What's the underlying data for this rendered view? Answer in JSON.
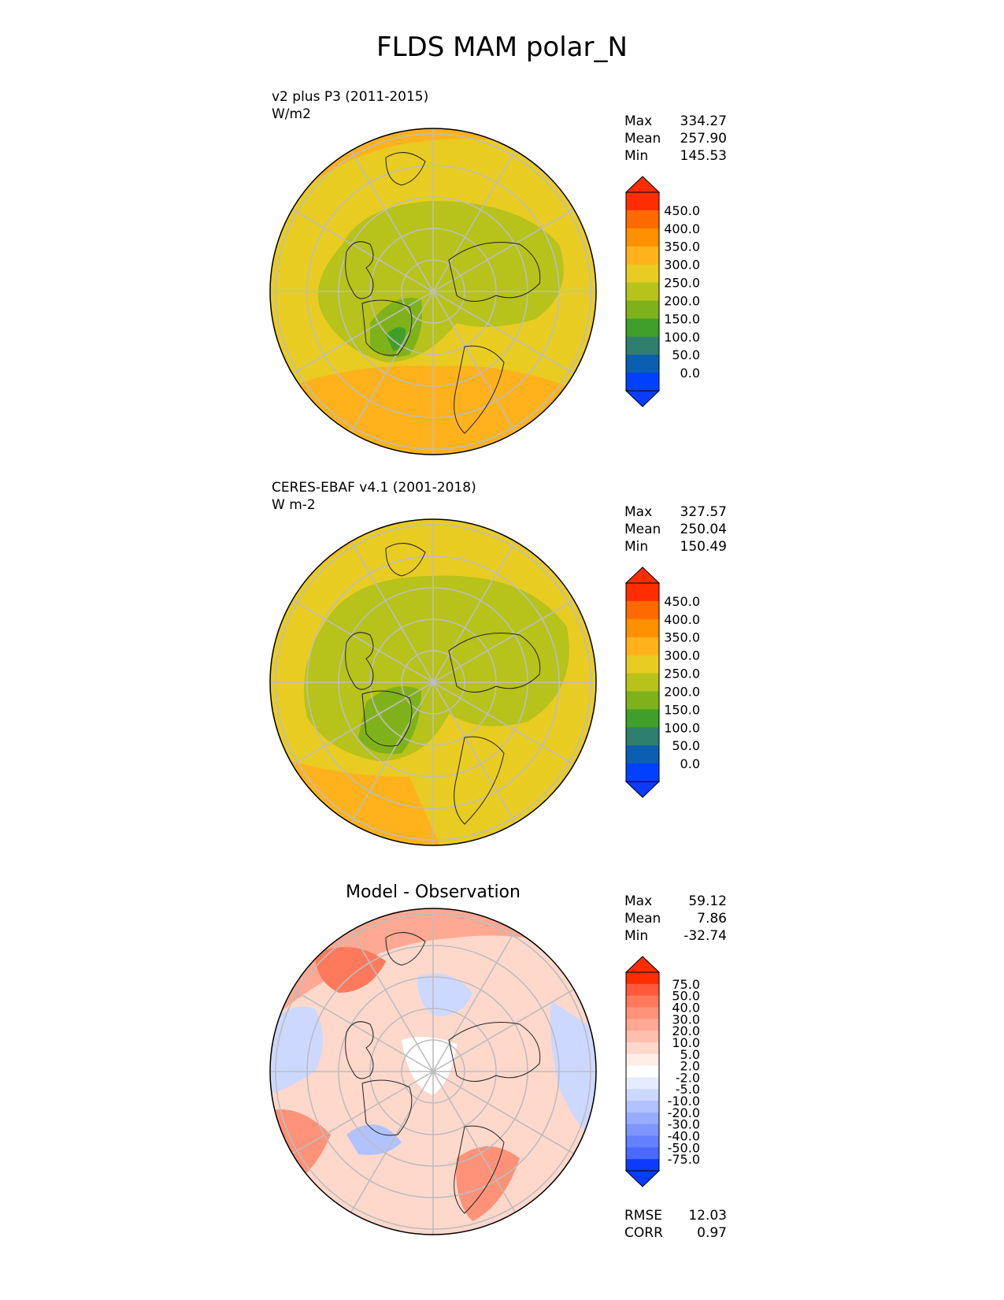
{
  "title": "FLDS MAM polar_N",
  "panels": [
    {
      "id": "test",
      "name": "v2 plus P3 (2011-2015)",
      "units": "W/m2",
      "stats": [
        [
          "Max",
          "334.27"
        ],
        [
          "Mean",
          "257.90"
        ],
        [
          "Min",
          "145.53"
        ]
      ],
      "colorbar": {
        "labels": [
          "450.0",
          "400.0",
          "350.0",
          "300.0",
          "250.0",
          "200.0",
          "150.0",
          "100.0",
          "50.0",
          "0.0"
        ],
        "colors": [
          "#ff2d00",
          "#ff6a00",
          "#ff9000",
          "#ffb21c",
          "#e8cc22",
          "#b7c21b",
          "#7fb21a",
          "#3f9f2a",
          "#2e7f6e",
          "#0a5fb0",
          "#0040ff"
        ],
        "over": "#ff2d00",
        "under": "#0a3cff"
      }
    },
    {
      "id": "ref",
      "name": "CERES-EBAF v4.1 (2001-2018)",
      "units": "W m-2",
      "stats": [
        [
          "Max",
          "327.57"
        ],
        [
          "Mean",
          "250.04"
        ],
        [
          "Min",
          "150.49"
        ]
      ],
      "colorbar": {
        "labels": [
          "450.0",
          "400.0",
          "350.0",
          "300.0",
          "250.0",
          "200.0",
          "150.0",
          "100.0",
          "50.0",
          "0.0"
        ],
        "colors": [
          "#ff2d00",
          "#ff6a00",
          "#ff9000",
          "#ffb21c",
          "#e8cc22",
          "#b7c21b",
          "#7fb21a",
          "#3f9f2a",
          "#2e7f6e",
          "#0a5fb0",
          "#0040ff"
        ],
        "over": "#ff2d00",
        "under": "#0a3cff"
      }
    },
    {
      "id": "diff",
      "title": "Model - Observation",
      "stats": [
        [
          "Max",
          "59.12"
        ],
        [
          "Mean",
          "7.86"
        ],
        [
          "Min",
          "-32.74"
        ]
      ],
      "extra_stats": [
        [
          "RMSE",
          "12.03"
        ],
        [
          "CORR",
          "0.97"
        ]
      ],
      "colorbar": {
        "labels": [
          "75.0",
          "50.0",
          "40.0",
          "30.0",
          "20.0",
          "10.0",
          "5.0",
          "2.0",
          "-2.0",
          "-5.0",
          "-10.0",
          "-20.0",
          "-30.0",
          "-40.0",
          "-50.0",
          "-75.0"
        ],
        "colors": [
          "#ff2d00",
          "#ff5a3c",
          "#ff7a5c",
          "#ff9278",
          "#ffa893",
          "#ffbfae",
          "#ffd8cc",
          "#ffeee8",
          "#ffffff",
          "#e6ecff",
          "#ccd8ff",
          "#b2c2ff",
          "#98acff",
          "#7e96ff",
          "#6480ff",
          "#4a6aff",
          "#0a3cff"
        ],
        "over": "#ff2d00",
        "under": "#0a3cff"
      }
    }
  ]
}
